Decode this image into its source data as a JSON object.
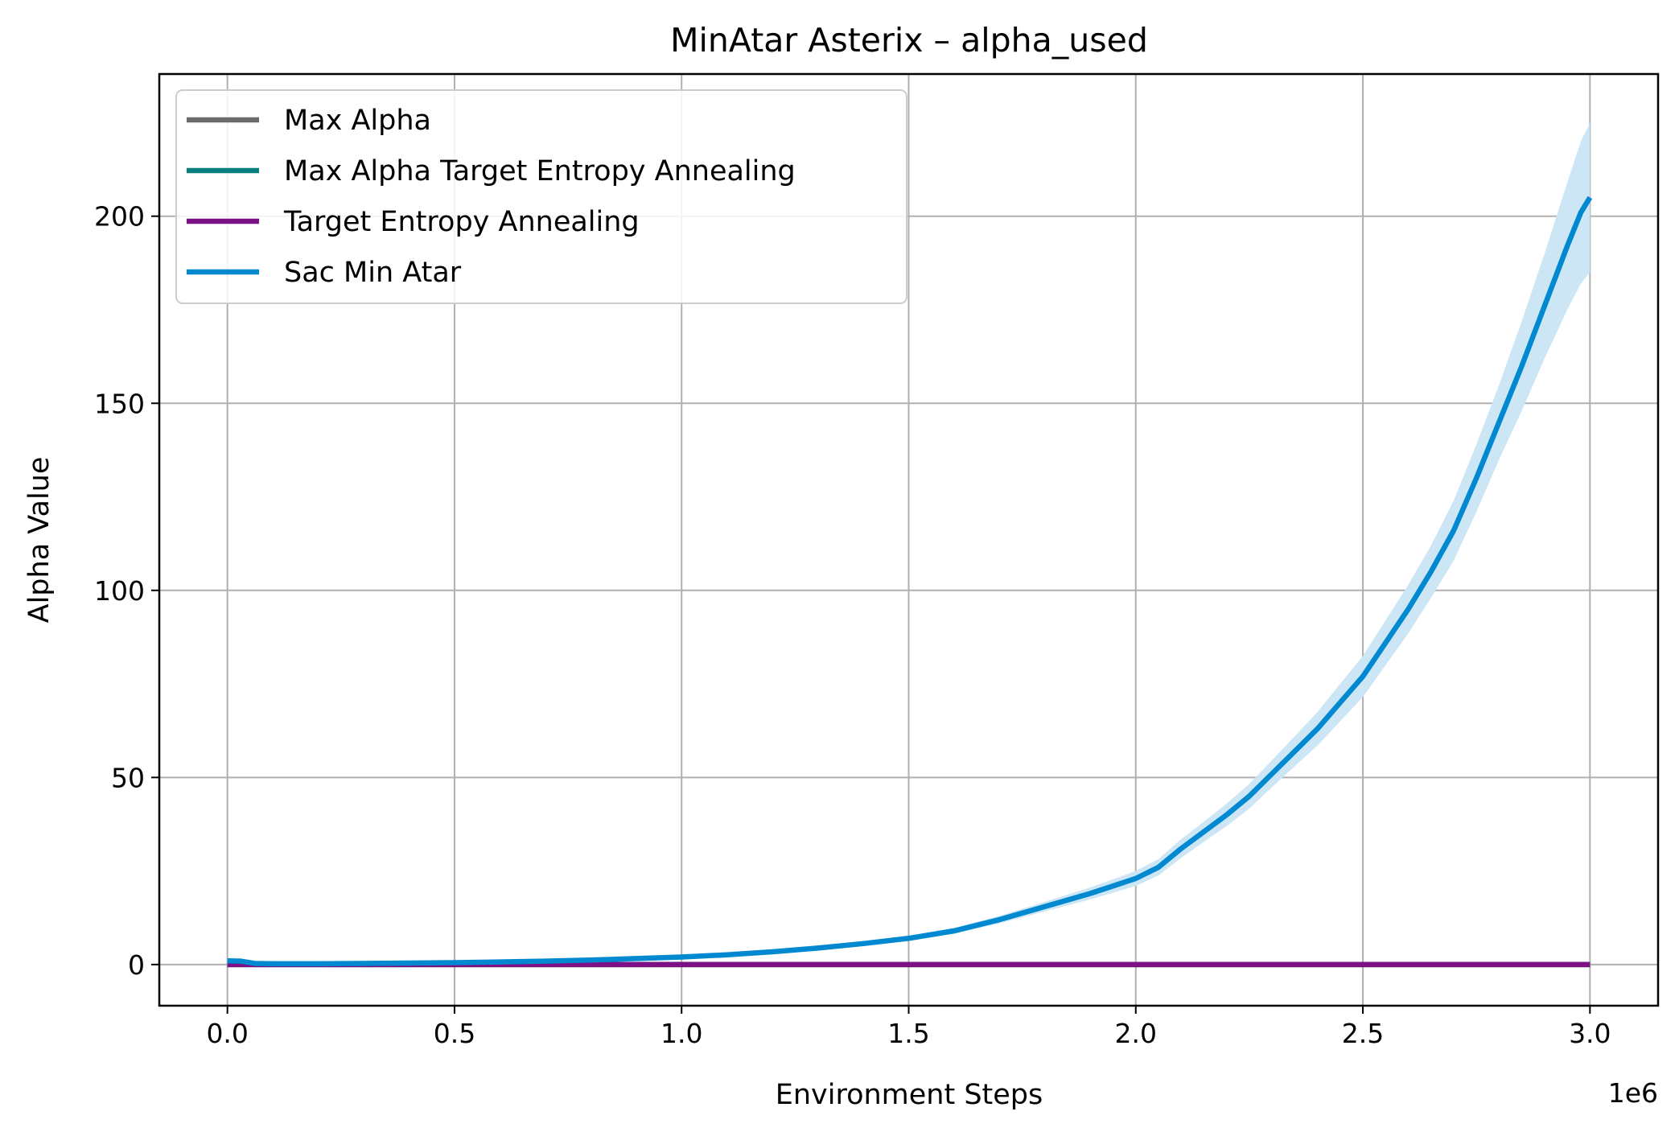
{
  "chart_data": {
    "type": "line",
    "title": "MinAtar Asterix – alpha_used",
    "xlabel": "Environment Steps",
    "ylabel": "Alpha Value",
    "x_offset_label": "1e6",
    "xlim": [
      -0.15,
      3.15
    ],
    "ylim": [
      -11,
      238
    ],
    "xticks": [
      0.0,
      0.5,
      1.0,
      1.5,
      2.0,
      2.5,
      3.0
    ],
    "xtick_labels": [
      "0.0",
      "0.5",
      "1.0",
      "1.5",
      "2.0",
      "2.5",
      "3.0"
    ],
    "yticks": [
      0,
      50,
      100,
      150,
      200
    ],
    "ytick_labels": [
      "0",
      "50",
      "100",
      "150",
      "200"
    ],
    "grid": true,
    "legend_position": "top-left",
    "series": [
      {
        "name": "Max Alpha",
        "color": "#6b6b6b",
        "x": [
          0.0,
          3.0
        ],
        "y": [
          0.0,
          0.0
        ]
      },
      {
        "name": "Max Alpha Target Entropy Annealing",
        "color": "#0a7f7f",
        "x": [
          0.0,
          3.0
        ],
        "y": [
          0.0,
          0.0
        ]
      },
      {
        "name": "Target Entropy Annealing",
        "color": "#7b1184",
        "x": [
          0.0,
          3.0
        ],
        "y": [
          0.0,
          0.0
        ]
      },
      {
        "name": "Sac Min Atar",
        "color": "#0088d0",
        "band_color": "#cce6f6",
        "x": [
          0.0,
          0.03,
          0.06,
          0.1,
          0.2,
          0.3,
          0.4,
          0.5,
          0.6,
          0.7,
          0.8,
          0.9,
          1.0,
          1.1,
          1.2,
          1.3,
          1.4,
          1.5,
          1.6,
          1.7,
          1.8,
          1.9,
          2.0,
          2.05,
          2.1,
          2.15,
          2.2,
          2.25,
          2.3,
          2.35,
          2.4,
          2.45,
          2.5,
          2.55,
          2.6,
          2.65,
          2.7,
          2.75,
          2.8,
          2.85,
          2.9,
          2.95,
          2.98,
          3.0
        ],
        "y": [
          1.0,
          0.9,
          0.3,
          0.2,
          0.2,
          0.3,
          0.4,
          0.5,
          0.7,
          0.9,
          1.2,
          1.6,
          2.0,
          2.6,
          3.4,
          4.4,
          5.6,
          7.0,
          9.0,
          12.0,
          15.5,
          19.0,
          23.0,
          26.0,
          31.0,
          35.5,
          40.0,
          45.0,
          51.0,
          57.0,
          63.0,
          70.0,
          77.0,
          86.0,
          95.0,
          105.0,
          116.0,
          130.0,
          145.0,
          160.0,
          176.0,
          192.0,
          201.0,
          205.0
        ],
        "band_half_width": [
          0.3,
          0.3,
          0.1,
          0.1,
          0.1,
          0.1,
          0.1,
          0.1,
          0.1,
          0.1,
          0.1,
          0.15,
          0.2,
          0.25,
          0.3,
          0.4,
          0.5,
          0.6,
          0.8,
          1.0,
          1.3,
          1.6,
          2.0,
          2.2,
          2.5,
          2.7,
          3.0,
          3.3,
          3.6,
          4.0,
          4.5,
          5.0,
          5.5,
          6.0,
          6.5,
          7.0,
          8.0,
          9.0,
          10.0,
          12.0,
          14.0,
          17.0,
          19.0,
          20.0
        ]
      }
    ]
  }
}
